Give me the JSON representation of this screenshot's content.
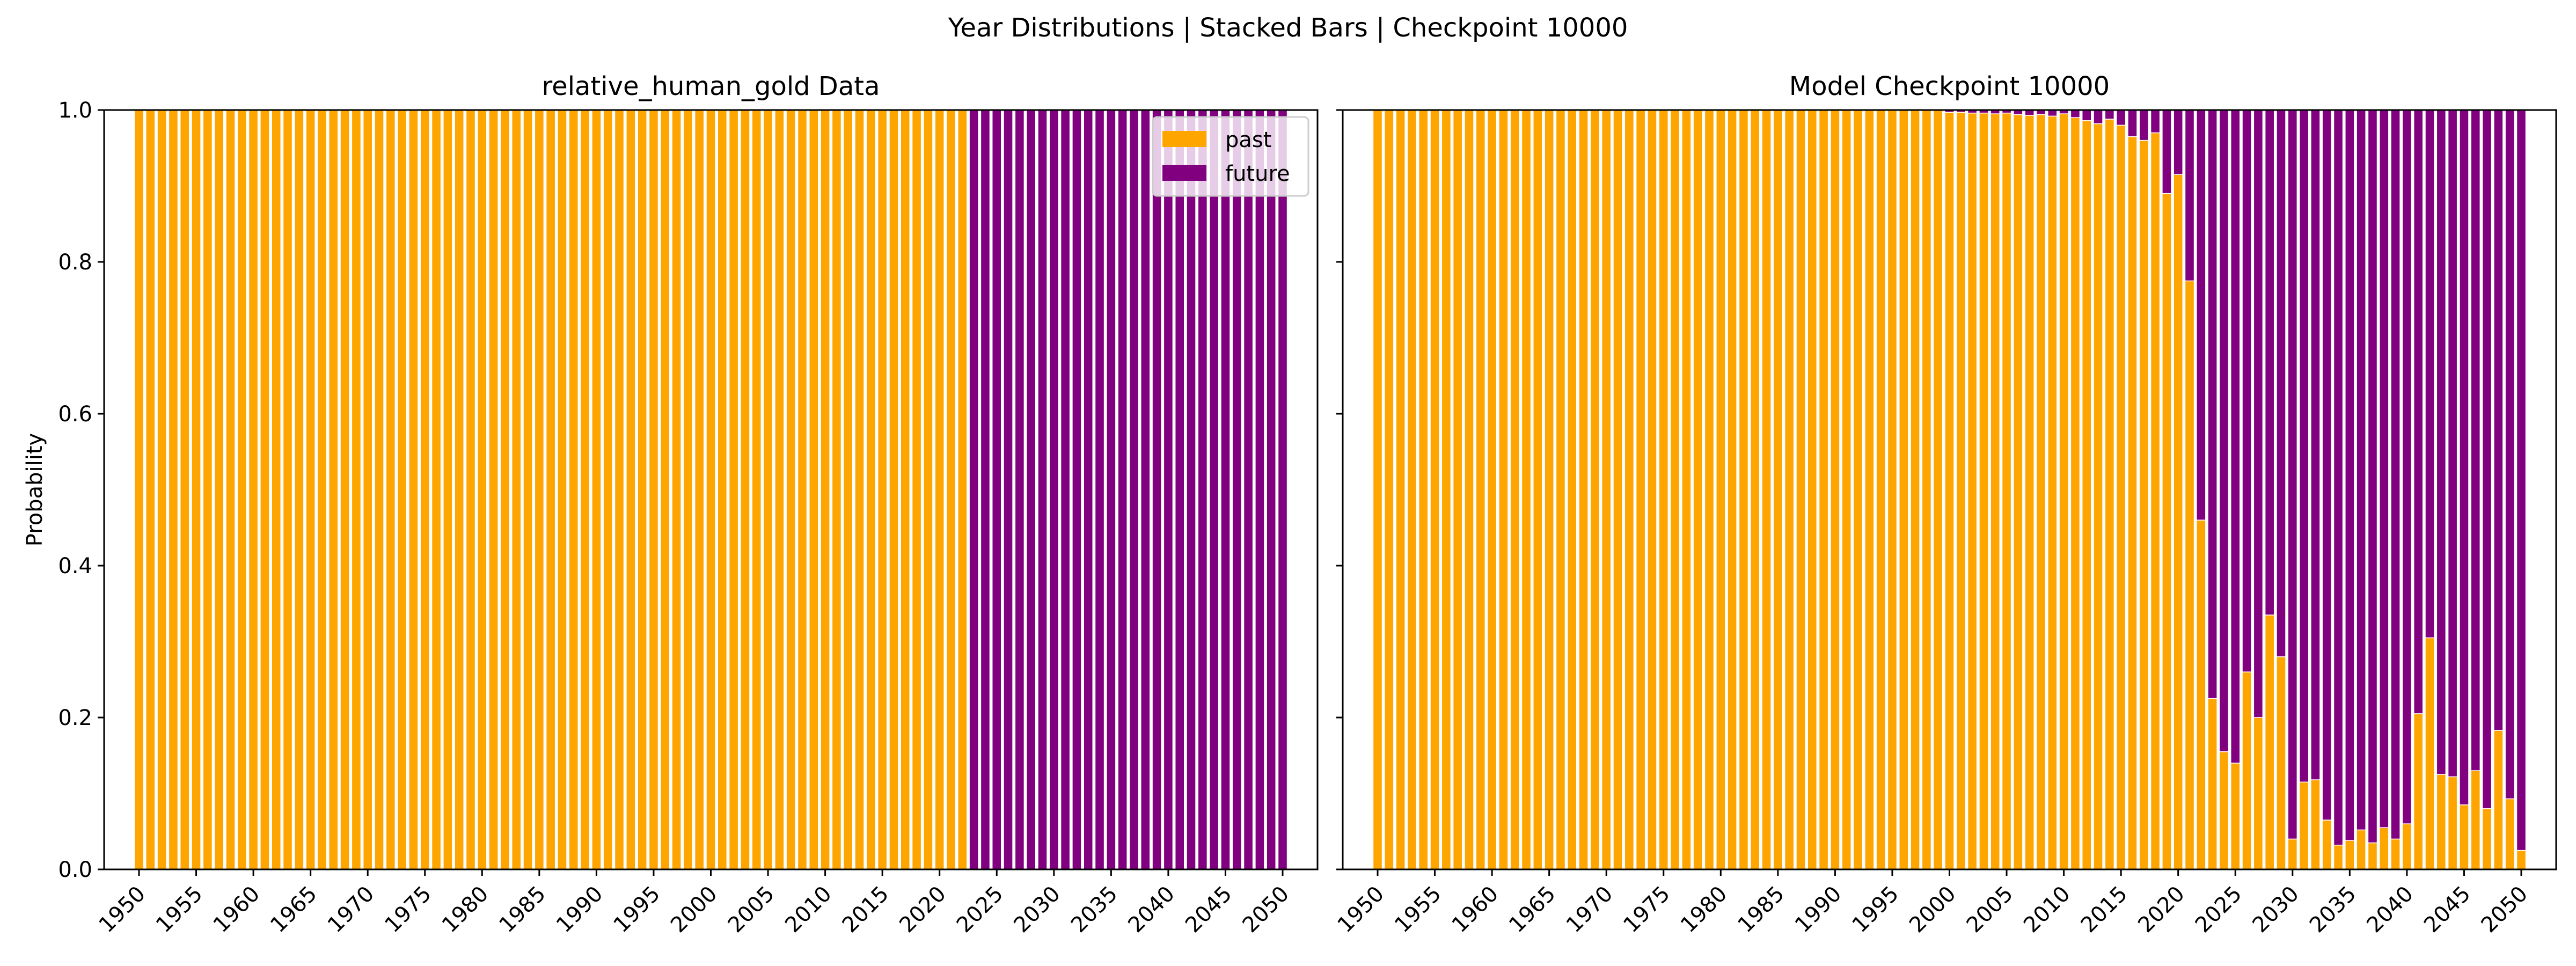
{
  "figure_title": "Year Distributions | Stacked Bars | Checkpoint 10000",
  "colors": {
    "past": "#FFA500",
    "future": "#800080"
  },
  "chart_data": [
    {
      "type": "bar",
      "stacked": true,
      "title": "relative_human_gold Data",
      "xlabel": "",
      "ylabel": "Probability",
      "ylim": [
        0,
        1.0
      ],
      "xticks": [
        1950,
        1955,
        1960,
        1965,
        1970,
        1975,
        1980,
        1985,
        1990,
        1995,
        2000,
        2005,
        2010,
        2015,
        2020,
        2025,
        2030,
        2035,
        2040,
        2045,
        2050
      ],
      "yticks": [
        0.0,
        0.2,
        0.4,
        0.6,
        0.8,
        1.0
      ],
      "legend": {
        "placement": "top-right",
        "entries": [
          "past",
          "future"
        ]
      },
      "grid": false,
      "categories": [
        1950,
        1951,
        1952,
        1953,
        1954,
        1955,
        1956,
        1957,
        1958,
        1959,
        1960,
        1961,
        1962,
        1963,
        1964,
        1965,
        1966,
        1967,
        1968,
        1969,
        1970,
        1971,
        1972,
        1973,
        1974,
        1975,
        1976,
        1977,
        1978,
        1979,
        1980,
        1981,
        1982,
        1983,
        1984,
        1985,
        1986,
        1987,
        1988,
        1989,
        1990,
        1991,
        1992,
        1993,
        1994,
        1995,
        1996,
        1997,
        1998,
        1999,
        2000,
        2001,
        2002,
        2003,
        2004,
        2005,
        2006,
        2007,
        2008,
        2009,
        2010,
        2011,
        2012,
        2013,
        2014,
        2015,
        2016,
        2017,
        2018,
        2019,
        2020,
        2021,
        2022,
        2023,
        2024,
        2025,
        2026,
        2027,
        2028,
        2029,
        2030,
        2031,
        2032,
        2033,
        2034,
        2035,
        2036,
        2037,
        2038,
        2039,
        2040,
        2041,
        2042,
        2043,
        2044,
        2045,
        2046,
        2047,
        2048,
        2049,
        2050
      ],
      "series": [
        {
          "name": "past",
          "values": [
            1,
            1,
            1,
            1,
            1,
            1,
            1,
            1,
            1,
            1,
            1,
            1,
            1,
            1,
            1,
            1,
            1,
            1,
            1,
            1,
            1,
            1,
            1,
            1,
            1,
            1,
            1,
            1,
            1,
            1,
            1,
            1,
            1,
            1,
            1,
            1,
            1,
            1,
            1,
            1,
            1,
            1,
            1,
            1,
            1,
            1,
            1,
            1,
            1,
            1,
            1,
            1,
            1,
            1,
            1,
            1,
            1,
            1,
            1,
            1,
            1,
            1,
            1,
            1,
            1,
            1,
            1,
            1,
            1,
            1,
            1,
            1,
            1,
            0,
            0,
            0,
            0,
            0,
            0,
            0,
            0,
            0,
            0,
            0,
            0,
            0,
            0,
            0,
            0,
            0,
            0,
            0,
            0,
            0,
            0,
            0,
            0,
            0,
            0,
            0,
            0
          ]
        },
        {
          "name": "future",
          "values": [
            0,
            0,
            0,
            0,
            0,
            0,
            0,
            0,
            0,
            0,
            0,
            0,
            0,
            0,
            0,
            0,
            0,
            0,
            0,
            0,
            0,
            0,
            0,
            0,
            0,
            0,
            0,
            0,
            0,
            0,
            0,
            0,
            0,
            0,
            0,
            0,
            0,
            0,
            0,
            0,
            0,
            0,
            0,
            0,
            0,
            0,
            0,
            0,
            0,
            0,
            0,
            0,
            0,
            0,
            0,
            0,
            0,
            0,
            0,
            0,
            0,
            0,
            0,
            0,
            0,
            0,
            0,
            0,
            0,
            0,
            0,
            0,
            0,
            1,
            1,
            1,
            1,
            1,
            1,
            1,
            1,
            1,
            1,
            1,
            1,
            1,
            1,
            1,
            1,
            1,
            1,
            1,
            1,
            1,
            1,
            1,
            1,
            1,
            1,
            1,
            1
          ]
        }
      ]
    },
    {
      "type": "bar",
      "stacked": true,
      "title": "Model Checkpoint 10000",
      "xlabel": "",
      "ylabel": "",
      "ylim": [
        0,
        1.0
      ],
      "xticks": [
        1950,
        1955,
        1960,
        1965,
        1970,
        1975,
        1980,
        1985,
        1990,
        1995,
        2000,
        2005,
        2010,
        2015,
        2020,
        2025,
        2030,
        2035,
        2040,
        2045,
        2050
      ],
      "yticks": [
        0.0,
        0.2,
        0.4,
        0.6,
        0.8,
        1.0
      ],
      "grid": false,
      "categories": [
        1950,
        1951,
        1952,
        1953,
        1954,
        1955,
        1956,
        1957,
        1958,
        1959,
        1960,
        1961,
        1962,
        1963,
        1964,
        1965,
        1966,
        1967,
        1968,
        1969,
        1970,
        1971,
        1972,
        1973,
        1974,
        1975,
        1976,
        1977,
        1978,
        1979,
        1980,
        1981,
        1982,
        1983,
        1984,
        1985,
        1986,
        1987,
        1988,
        1989,
        1990,
        1991,
        1992,
        1993,
        1994,
        1995,
        1996,
        1997,
        1998,
        1999,
        2000,
        2001,
        2002,
        2003,
        2004,
        2005,
        2006,
        2007,
        2008,
        2009,
        2010,
        2011,
        2012,
        2013,
        2014,
        2015,
        2016,
        2017,
        2018,
        2019,
        2020,
        2021,
        2022,
        2023,
        2024,
        2025,
        2026,
        2027,
        2028,
        2029,
        2030,
        2031,
        2032,
        2033,
        2034,
        2035,
        2036,
        2037,
        2038,
        2039,
        2040,
        2041,
        2042,
        2043,
        2044,
        2045,
        2046,
        2047,
        2048,
        2049,
        2050
      ],
      "series": [
        {
          "name": "past",
          "values": [
            1,
            1,
            1,
            1,
            1,
            1,
            1,
            1,
            1,
            1,
            1,
            1,
            1,
            1,
            1,
            1,
            1,
            1,
            1,
            1,
            1,
            1,
            1,
            1,
            1,
            1,
            1,
            1,
            1,
            1,
            1,
            1,
            1,
            1,
            1,
            1,
            1,
            1,
            1,
            1,
            1,
            1,
            1,
            1,
            1,
            1,
            1,
            1,
            1,
            1,
            0.997,
            0.997,
            0.996,
            0.996,
            0.995,
            0.996,
            0.994,
            0.993,
            0.994,
            0.992,
            0.995,
            0.99,
            0.986,
            0.982,
            0.988,
            0.98,
            0.965,
            0.96,
            0.97,
            0.89,
            0.915,
            0.775,
            0.46,
            0.225,
            0.155,
            0.14,
            0.26,
            0.2,
            0.335,
            0.28,
            0.04,
            0.115,
            0.118,
            0.065,
            0.032,
            0.038,
            0.052,
            0.035,
            0.055,
            0.04,
            0.06,
            0.205,
            0.305,
            0.125,
            0.122,
            0.085,
            0.13,
            0.08,
            0.183,
            0.093,
            0.025
          ]
        },
        {
          "name": "future",
          "values": [
            0,
            0,
            0,
            0,
            0,
            0,
            0,
            0,
            0,
            0,
            0,
            0,
            0,
            0,
            0,
            0,
            0,
            0,
            0,
            0,
            0,
            0,
            0,
            0,
            0,
            0,
            0,
            0,
            0,
            0,
            0,
            0,
            0,
            0,
            0,
            0,
            0,
            0,
            0,
            0,
            0,
            0,
            0,
            0,
            0,
            0,
            0,
            0,
            0,
            0,
            0.003,
            0.003,
            0.004,
            0.004,
            0.005,
            0.004,
            0.006,
            0.007,
            0.006,
            0.008,
            0.005,
            0.01,
            0.014,
            0.018,
            0.012,
            0.02,
            0.035,
            0.04,
            0.03,
            0.11,
            0.085,
            0.225,
            0.54,
            0.775,
            0.845,
            0.86,
            0.74,
            0.8,
            0.665,
            0.72,
            0.96,
            0.885,
            0.882,
            0.935,
            0.968,
            0.962,
            0.948,
            0.965,
            0.945,
            0.96,
            0.94,
            0.795,
            0.695,
            0.875,
            0.878,
            0.915,
            0.87,
            0.92,
            0.817,
            0.907,
            0.975
          ]
        }
      ]
    }
  ]
}
